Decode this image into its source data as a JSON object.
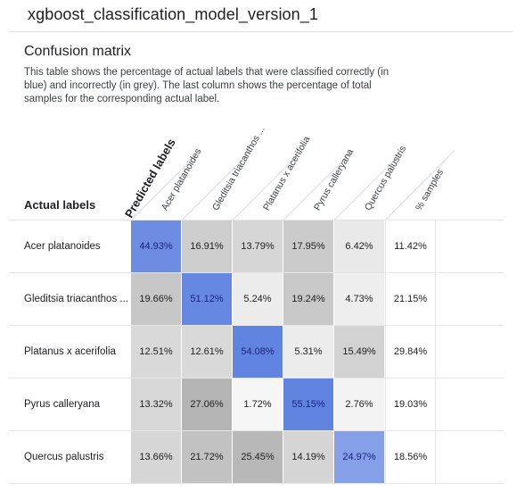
{
  "page": {
    "model_title": "xgboost_classification_model_version_1",
    "section_title": "Confusion matrix",
    "description": "This table shows the percentage of actual labels that were classified correctly (in blue) and incorrectly (in grey). The last column shows the percentage of total samples for the corresponding actual label."
  },
  "matrix": {
    "actual_header": "Actual labels",
    "predicted_header": "Predicted labels",
    "columns": [
      "Acer platanoides",
      "Gleditsia triacanthos ...",
      "Platanus x acerifolia",
      "Pyrus calleryana",
      "Quercus palustris",
      "% samples"
    ],
    "rows": [
      {
        "label": "Acer platanoides",
        "values": [
          "44.93%",
          "16.91%",
          "13.79%",
          "17.95%",
          "6.42%"
        ],
        "samples": "11.42%"
      },
      {
        "label": "Gleditsia triacanthos ...",
        "values": [
          "19.66%",
          "51.12%",
          "5.24%",
          "19.24%",
          "4.73%"
        ],
        "samples": "21.15%"
      },
      {
        "label": "Platanus x acerifolia",
        "values": [
          "12.51%",
          "12.61%",
          "54.08%",
          "5.31%",
          "15.49%"
        ],
        "samples": "29.84%"
      },
      {
        "label": "Pyrus calleryana",
        "values": [
          "13.32%",
          "27.06%",
          "1.72%",
          "55.15%",
          "2.76%"
        ],
        "samples": "19.03%"
      },
      {
        "label": "Quercus palustris",
        "values": [
          "13.66%",
          "21.72%",
          "25.45%",
          "14.19%",
          "24.97%"
        ],
        "samples": "18.56%"
      }
    ]
  },
  "colors": {
    "correct_blue": "#5b7fe0",
    "incorrect_grey": "#9e9e9e",
    "text": "#202124"
  }
}
